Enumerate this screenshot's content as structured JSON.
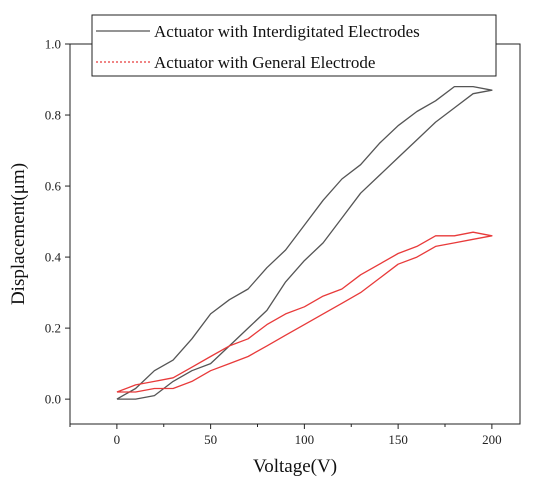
{
  "chart_data": {
    "type": "line",
    "title": "",
    "xlabel": "Voltage(V)",
    "ylabel": "Displacement(μm)",
    "xlim": [
      -25,
      215
    ],
    "ylim": [
      -0.07,
      1.0
    ],
    "x_ticks": [
      0,
      50,
      100,
      150,
      200
    ],
    "y_ticks": [
      0.0,
      0.2,
      0.4,
      0.6,
      0.8,
      1.0
    ],
    "y_tick_labels": [
      "0.0",
      "0.2",
      "0.4",
      "0.6",
      "0.8",
      "1.0"
    ],
    "grid": false,
    "legend_position": "top",
    "series": [
      {
        "name": "Actuator with Interdigitated Electrodes",
        "color": "#555555",
        "x": [
          0,
          10,
          20,
          30,
          40,
          50,
          60,
          70,
          80,
          90,
          100,
          110,
          120,
          130,
          140,
          150,
          160,
          170,
          180,
          190,
          200,
          190,
          180,
          170,
          160,
          150,
          140,
          130,
          120,
          110,
          100,
          90,
          80,
          70,
          60,
          50,
          40,
          30,
          20,
          10,
          0
        ],
        "y": [
          0.0,
          0.0,
          0.01,
          0.05,
          0.08,
          0.1,
          0.15,
          0.2,
          0.25,
          0.33,
          0.39,
          0.44,
          0.51,
          0.58,
          0.63,
          0.68,
          0.73,
          0.78,
          0.82,
          0.86,
          0.87,
          0.88,
          0.88,
          0.84,
          0.81,
          0.77,
          0.72,
          0.66,
          0.62,
          0.56,
          0.49,
          0.42,
          0.37,
          0.31,
          0.28,
          0.24,
          0.17,
          0.11,
          0.08,
          0.03,
          0.0
        ]
      },
      {
        "name": "Actuator with General Electrode",
        "color": "#e83a3a",
        "x": [
          0,
          10,
          20,
          30,
          40,
          50,
          60,
          70,
          80,
          90,
          100,
          110,
          120,
          130,
          140,
          150,
          160,
          170,
          180,
          190,
          200,
          190,
          180,
          170,
          160,
          150,
          140,
          130,
          120,
          110,
          100,
          90,
          80,
          70,
          60,
          50,
          40,
          30,
          20,
          10,
          0
        ],
        "y": [
          0.02,
          0.02,
          0.03,
          0.03,
          0.05,
          0.08,
          0.1,
          0.12,
          0.15,
          0.18,
          0.21,
          0.24,
          0.27,
          0.3,
          0.34,
          0.38,
          0.4,
          0.43,
          0.44,
          0.45,
          0.46,
          0.47,
          0.46,
          0.46,
          0.43,
          0.41,
          0.38,
          0.35,
          0.31,
          0.29,
          0.26,
          0.24,
          0.21,
          0.17,
          0.15,
          0.12,
          0.09,
          0.06,
          0.05,
          0.04,
          0.02
        ]
      }
    ]
  }
}
